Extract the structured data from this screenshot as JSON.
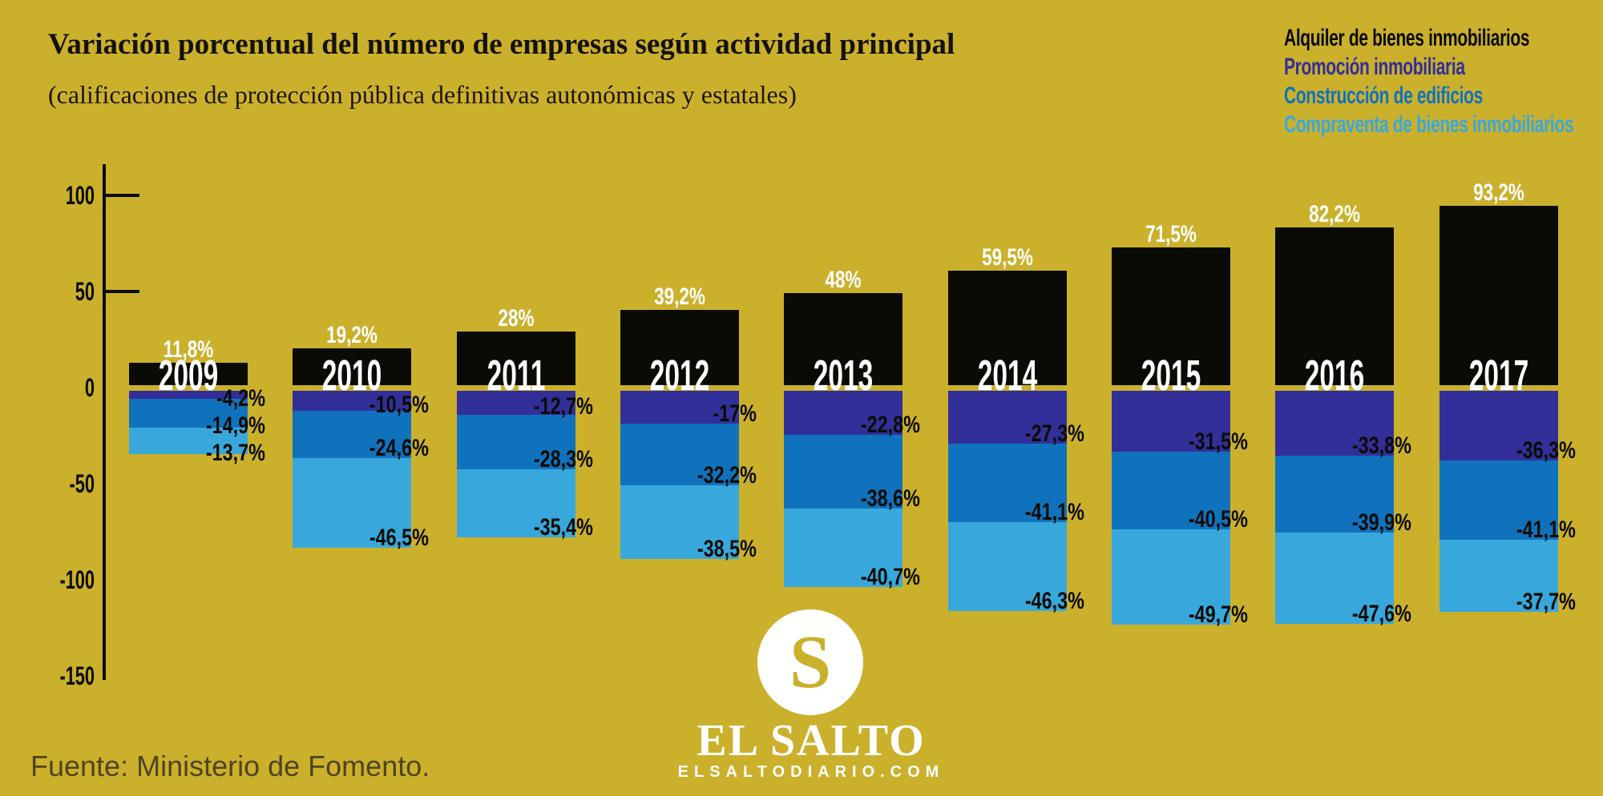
{
  "header": {
    "title": "Variación porcentual del número de empresas según actividad principal",
    "subtitle": "(calificaciones de protección pública definitivas autonómicas y estatales)"
  },
  "footer": {
    "source": "Fuente: Ministerio de Fomento."
  },
  "logo": {
    "monogram": "S",
    "name": "EL SALTO",
    "site": "ELSALTODIARIO.COM"
  },
  "colors": {
    "background": "#cbb02c",
    "ink": "#0b0b06",
    "light_label": "#ffffff",
    "source_text": "#4f451d"
  },
  "chart_data": {
    "type": "bar",
    "stacked": true,
    "grid": false,
    "legend_position": "top-right",
    "categories": [
      "2009",
      "2010",
      "2011",
      "2012",
      "2013",
      "2014",
      "2015",
      "2016",
      "2017"
    ],
    "yticks": [
      100,
      50,
      0,
      -50,
      -100,
      -150
    ],
    "ylim": [
      -150,
      120
    ],
    "series": [
      {
        "name": "Alquiler de bienes inmobiliarios",
        "color": "#0b0b06",
        "values": [
          11.8,
          19.2,
          28,
          39.2,
          48,
          59.5,
          71.5,
          82.2,
          93.2
        ],
        "labels": [
          "11,8%",
          "19,2%",
          "28%",
          "39,2%",
          "48%",
          "59,5%",
          "71,5%",
          "82,2%",
          "93,2%"
        ]
      },
      {
        "name": "Promoción inmobiliaria",
        "color": "#322f99",
        "values": [
          -4.2,
          -10.5,
          -12.7,
          -17,
          -22.8,
          -27.3,
          -31.5,
          -33.8,
          -36.3
        ],
        "labels": [
          "-4,2%",
          "-10,5%",
          "-12,7%",
          "-17%",
          "-22,8%",
          "-27,3%",
          "-31,5%",
          "-33,8%",
          "-36,3%"
        ]
      },
      {
        "name": "Construcción de edificios",
        "color": "#1072bd",
        "values": [
          -14.9,
          -24.6,
          -28.3,
          -32.2,
          -38.6,
          -41.1,
          -40.5,
          -39.9,
          -41.1
        ],
        "labels": [
          "-14,9%",
          "-24,6%",
          "-28,3%",
          "-32,2%",
          "-38,6%",
          "-41,1%",
          "-40,5%",
          "-39,9%",
          "-41,1%"
        ]
      },
      {
        "name": "Compraventa de bienes inmobiliarios",
        "color": "#38a8dc",
        "values": [
          -13.7,
          -46.5,
          -35.4,
          -38.5,
          -40.7,
          -46.3,
          -49.7,
          -47.6,
          -37.7
        ],
        "labels": [
          "-13,7%",
          "-46,5%",
          "-35,4%",
          "-38,5%",
          "-40,7%",
          "-46,3%",
          "-49,7%",
          "-47,6%",
          "-37,7%"
        ]
      }
    ]
  }
}
